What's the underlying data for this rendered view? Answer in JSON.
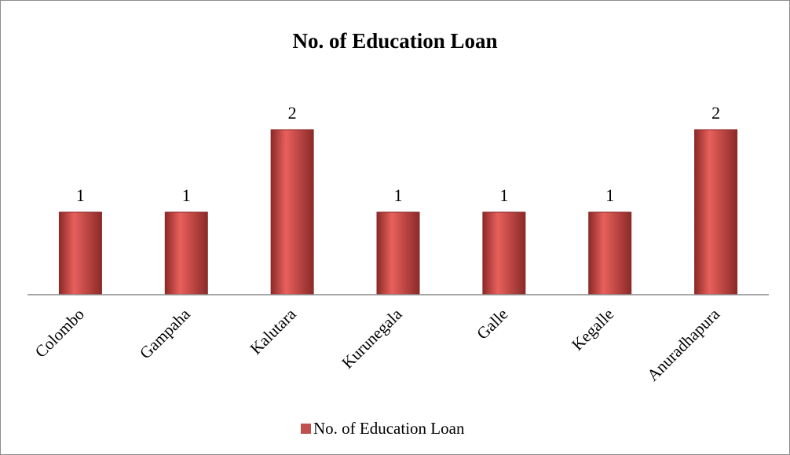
{
  "chart_data": {
    "type": "bar",
    "title": "No. of Education Loan",
    "categories": [
      "Colombo",
      "Gampaha",
      "Kalutara",
      "Kurunegala",
      "Galle",
      "Kegalle",
      "Anuradhapura"
    ],
    "series": [
      {
        "name": "No. of Education Loan",
        "values": [
          1,
          1,
          2,
          1,
          1,
          1,
          2
        ]
      }
    ],
    "ylim": [
      0,
      2
    ],
    "grid": false,
    "legend": "bottom",
    "colors": {
      "bar": "#c0504d",
      "bar_dark": "#8b2a28",
      "bar_light": "#e8605c",
      "axis": "#8c8c8c"
    }
  }
}
